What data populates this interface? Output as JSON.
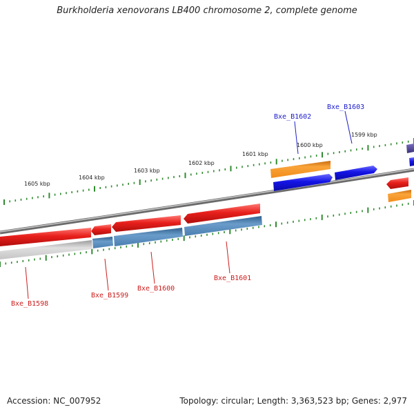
{
  "title": "Burkholderia xenovorans LB400 chromosome 2, complete genome",
  "footer": {
    "accession": "Accession: NC_007952",
    "summary": "Topology: circular; Length: 3,363,523 bp; Genes: 2,977"
  },
  "ruler": {
    "labels": [
      "1605 kbp",
      "1604 kbp",
      "1603 kbp",
      "1602 kbp",
      "1601 kbp",
      "1600 kbp",
      "1599 kbp"
    ],
    "tick_color": "#2e8b2e"
  },
  "gene_labels": {
    "top": [
      "Bxe_B1602",
      "Bxe_B1603"
    ],
    "bottom": [
      "Bxe_B1598",
      "Bxe_B1599",
      "Bxe_B1600",
      "Bxe_B1601"
    ]
  },
  "colors": {
    "red": "#e8201c",
    "blue": "#1414e6",
    "orange": "#f28c1a",
    "steel": "#4a7fb0",
    "purple": "#4a3f8a",
    "label_blue": "#1a1acc",
    "label_red": "#cc1a1a",
    "backbone": "#8a8a8a"
  }
}
